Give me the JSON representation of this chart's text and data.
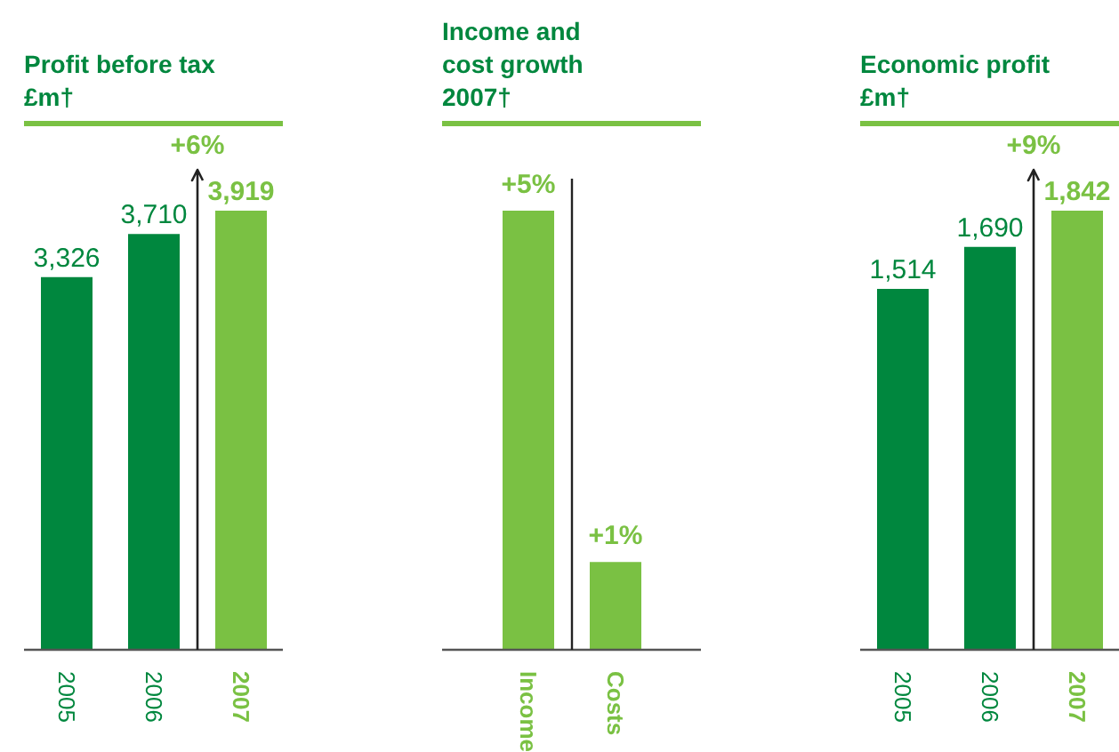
{
  "chart_data": [
    {
      "type": "bar",
      "title": "Profit before tax\n£m†",
      "categories": [
        "2005",
        "2006",
        "2007"
      ],
      "values": [
        3326,
        3710,
        3919
      ],
      "colors": [
        "#00873e",
        "#00873e",
        "#7ac143"
      ],
      "value_labels": [
        "3,326",
        "3,710",
        "3,919"
      ],
      "annotations": [
        "+6%"
      ],
      "grid": false,
      "tick_labels": "x"
    },
    {
      "type": "bar",
      "title": "Income and\ncost growth\n2007†",
      "categories": [
        "Income",
        "Costs"
      ],
      "values": [
        5,
        1
      ],
      "colors": [
        "#7ac143",
        "#7ac143"
      ],
      "value_labels": [
        "+5%",
        "+1%"
      ],
      "grid": false,
      "tick_labels": "x"
    },
    {
      "type": "bar",
      "title": "Economic profit\n£m†",
      "categories": [
        "2005",
        "2006",
        "2007"
      ],
      "values": [
        1514,
        1690,
        1842
      ],
      "colors": [
        "#00873e",
        "#00873e",
        "#7ac143"
      ],
      "value_labels": [
        "1,514",
        "1,690",
        "1,842"
      ],
      "annotations": [
        "+9%"
      ],
      "grid": false,
      "tick_labels": "x"
    }
  ]
}
